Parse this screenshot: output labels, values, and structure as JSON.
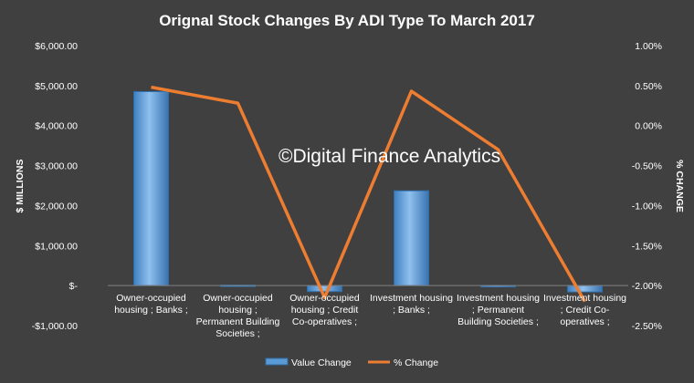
{
  "chart_data": {
    "type": "bar",
    "title": "Orignal Stock Changes By ADI Type To March 2017",
    "ylabel": "$ MILLIONS",
    "y2label": "% CHANGE",
    "ylim": [
      -1000,
      6000
    ],
    "y2lim": [
      -2.5,
      1.0
    ],
    "yticks": [
      "$6,000.00",
      "$5,000.00",
      "$4,000.00",
      "$3,000.00",
      "$2,000.00",
      "$1,000.00",
      "$-",
      "-$1,000.00"
    ],
    "y2ticks": [
      "1.00%",
      "0.50%",
      "0.00%",
      "-0.50%",
      "-1.00%",
      "-1.50%",
      "-2.00%",
      "-2.50%"
    ],
    "categories": [
      [
        "Owner-occupied",
        "housing ;  Banks ;"
      ],
      [
        "Owner-occupied",
        "housing ;",
        "Permanent Building",
        "Societies ;"
      ],
      [
        "Owner-occupied",
        "housing ;  Credit",
        "Co-operatives ;"
      ],
      [
        "Investment housing",
        "; Banks ;"
      ],
      [
        "Investment housing",
        "; Permanent",
        "Building Societies ;"
      ],
      [
        "Investment housing",
        "; Credit Co-",
        "operatives ;"
      ]
    ],
    "series": [
      {
        "name": "Value Change",
        "type": "bar",
        "axis": "left",
        "values": [
          4850,
          10,
          -150,
          2370,
          -10,
          -160
        ]
      },
      {
        "name": "% Change",
        "type": "line",
        "axis": "right",
        "values": [
          0.48,
          0.28,
          -2.15,
          0.43,
          -0.3,
          -2.2
        ]
      }
    ],
    "legend": "bottom",
    "grid": false,
    "colors": {
      "bar": "#5B9BD5",
      "line": "#ED7D31",
      "background": "#404040"
    }
  },
  "watermark": "©Digital Finance Analytics"
}
